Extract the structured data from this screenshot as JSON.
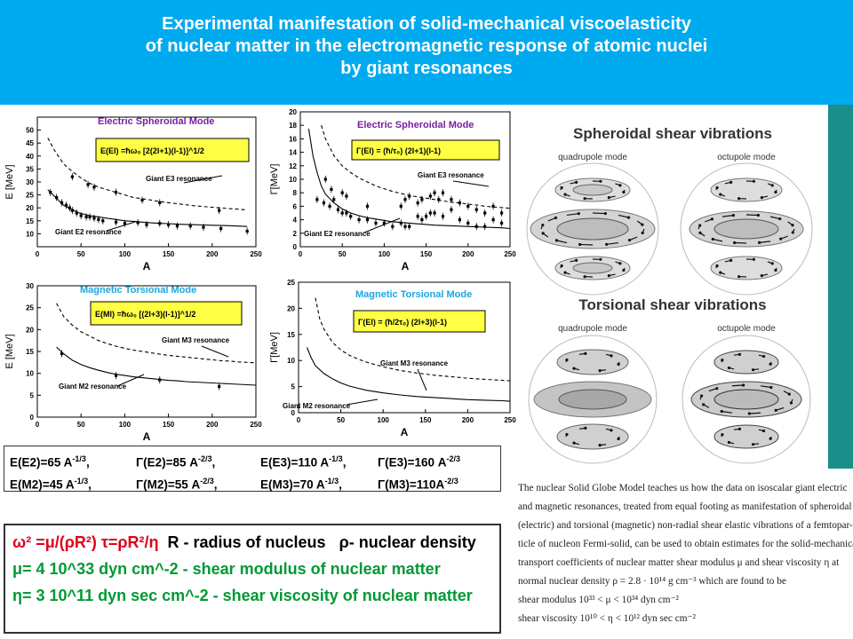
{
  "banner": {
    "line1": "Experimental manifestation of solid-mechanical viscoelasticity",
    "line2": "of nuclear matter in the electromagnetic response of atomic nuclei",
    "line3": "by giant resonances"
  },
  "chart_data": [
    {
      "type": "scatter",
      "title": "Electric Spheroidal Mode",
      "formula": "E(El) =ħω₀ [2(2l+1)(l-1)]^1/2",
      "xlabel": "A",
      "ylabel": "E [MeV]",
      "xlim": [
        0,
        250
      ],
      "ylim": [
        5,
        55
      ],
      "xticks": [
        "0",
        "50",
        "100",
        "150",
        "200",
        "250"
      ],
      "yticks": [
        "10",
        "15",
        "20",
        "25",
        "30",
        "35",
        "40",
        "45",
        "50"
      ],
      "annotations": [
        "Giant E3 resonance",
        "Giant E2 resonance"
      ],
      "series": [
        {
          "x": [
            12,
            18,
            24,
            30,
            36,
            42,
            48,
            54,
            60,
            70,
            80,
            90,
            100,
            110,
            120,
            130,
            140,
            150,
            160,
            170,
            180,
            190,
            200,
            210,
            220,
            240
          ],
          "y": [
            27,
            25,
            23,
            21,
            20,
            19,
            18,
            17.5,
            17,
            16.5,
            16,
            15.5,
            15,
            14.8,
            14.5,
            14.2,
            14,
            13.9,
            13.7,
            13.6,
            13.5,
            13.4,
            13.3,
            13.2,
            13.1,
            12.8
          ]
        },
        {
          "x": [
            12,
            20,
            30,
            40,
            50,
            60,
            70,
            80,
            90,
            100,
            110,
            120,
            130,
            140,
            150,
            160,
            170,
            180,
            190,
            200,
            210,
            220,
            230,
            240
          ],
          "y": [
            47,
            42,
            37,
            34,
            31.5,
            29.5,
            28,
            27,
            26,
            25,
            24,
            23.5,
            23,
            22.4,
            22,
            21.6,
            21.2,
            20.8,
            20.5,
            20.2,
            20,
            19.7,
            19.5,
            19.2
          ]
        },
        {
          "x": [
            15,
            22,
            28,
            33,
            37,
            40,
            45,
            50,
            56,
            60,
            65,
            70,
            75,
            90,
            100,
            115,
            125,
            140,
            150,
            160,
            175,
            190,
            210,
            240
          ],
          "y": [
            26,
            24,
            22,
            21,
            20,
            19,
            18,
            17,
            16.5,
            16.5,
            16,
            15.5,
            15,
            14.5,
            14,
            14.3,
            13.5,
            14,
            13.5,
            13,
            13,
            12.5,
            12,
            11
          ]
        },
        {
          "x": [
            40,
            58,
            65,
            90,
            120,
            140,
            208
          ],
          "y": [
            32,
            29,
            28,
            26,
            23,
            22,
            19
          ]
        }
      ]
    },
    {
      "type": "scatter",
      "title": "Electric Spheroidal Mode",
      "formula": "Γ(El) = (ħ/τ₀) (2l+1)(l-1)",
      "xlabel": "A",
      "ylabel": "Γ[MeV]",
      "xlim": [
        0,
        250
      ],
      "ylim": [
        0,
        20
      ],
      "xticks": [
        "0",
        "50",
        "100",
        "150",
        "200",
        "250"
      ],
      "yticks": [
        "0",
        "2",
        "4",
        "6",
        "8",
        "10",
        "12",
        "14",
        "16",
        "18",
        "20"
      ],
      "annotations": [
        "Giant E3 resonance",
        "Giant E2 resonance"
      ],
      "series": [
        {
          "x": [
            10,
            15,
            20,
            25,
            30,
            40,
            50,
            60,
            70,
            80,
            90,
            100,
            110,
            120,
            130,
            140,
            150,
            160,
            170,
            180,
            190,
            200,
            210,
            220,
            230,
            240,
            250
          ],
          "y": [
            17.5,
            13.5,
            11,
            9,
            7.8,
            6.5,
            5.6,
            5,
            4.6,
            4.3,
            4.1,
            3.9,
            3.7,
            3.6,
            3.5,
            3.4,
            3.3,
            3.2,
            3.15,
            3.1,
            3.05,
            3,
            2.95,
            2.9,
            2.85,
            2.8,
            2.7
          ]
        },
        {
          "x": [
            25,
            30,
            40,
            50,
            60,
            70,
            80,
            90,
            100,
            110,
            120,
            130,
            140,
            150,
            160,
            170,
            180,
            190,
            200,
            210,
            220,
            230,
            240,
            250
          ],
          "y": [
            18,
            16,
            13.5,
            12,
            11,
            10.2,
            9.6,
            9,
            8.6,
            8.2,
            7.9,
            7.6,
            7.4,
            7.2,
            7,
            6.8,
            6.6,
            6.5,
            6.3,
            6.2,
            6,
            5.9,
            5.8,
            5.7
          ]
        },
        {
          "x": [
            20,
            28,
            35,
            40,
            45,
            50,
            55,
            60,
            70,
            80,
            90,
            100,
            110,
            120,
            125,
            130,
            140,
            145,
            150,
            155,
            160,
            170,
            180,
            190,
            200,
            210,
            220,
            230,
            240
          ],
          "y": [
            7,
            6.5,
            6,
            7,
            5.5,
            5,
            5,
            4.5,
            4,
            4,
            3.5,
            3.5,
            3,
            3.5,
            3,
            3,
            4.5,
            4,
            4.5,
            5,
            5,
            4.5,
            5.5,
            4,
            3.5,
            3,
            3,
            4,
            3.5
          ]
        },
        {
          "x": [
            30,
            37,
            50,
            55,
            80,
            120,
            125,
            130,
            140,
            145,
            155,
            160,
            165,
            170,
            180,
            190,
            200,
            210,
            220,
            230,
            240
          ],
          "y": [
            10,
            8.5,
            8,
            7.5,
            6,
            6,
            7,
            7.5,
            6.5,
            7,
            7.5,
            8,
            7,
            8,
            7,
            6.5,
            6,
            5.5,
            5,
            6,
            5
          ]
        }
      ]
    },
    {
      "type": "scatter",
      "title": "Magnetic Torsional Mode",
      "formula": "E(Ml) =ħω₀ [(2l+3)(l-1)]^1/2",
      "xlabel": "A",
      "ylabel": "E [MeV]",
      "xlim": [
        0,
        250
      ],
      "ylim": [
        0,
        30
      ],
      "xticks": [
        "0",
        "50",
        "100",
        "150",
        "200",
        "250"
      ],
      "yticks": [
        "0",
        "5",
        "10",
        "15",
        "20",
        "25",
        "30"
      ],
      "annotations": [
        "Giant M3 resonance",
        "Giant M2 resonance"
      ],
      "series": [
        {
          "x": [
            22,
            30,
            40,
            50,
            60,
            70,
            80,
            90,
            100,
            110,
            120,
            130,
            140,
            150,
            160,
            170,
            180,
            190,
            200,
            210,
            220,
            230,
            240,
            250
          ],
          "y": [
            16,
            14.5,
            13,
            12,
            11.3,
            10.7,
            10.2,
            9.8,
            9.5,
            9.2,
            9,
            8.8,
            8.6,
            8.4,
            8.3,
            8.1,
            8,
            7.9,
            7.8,
            7.7,
            7.6,
            7.5,
            7.4,
            7.3
          ]
        },
        {
          "x": [
            22,
            30,
            40,
            50,
            60,
            70,
            80,
            90,
            100,
            110,
            120,
            130,
            140,
            150,
            160,
            170,
            180,
            190,
            200,
            210,
            220,
            230,
            240,
            250
          ],
          "y": [
            26,
            23,
            21,
            19.5,
            18.5,
            17.5,
            16.8,
            16.2,
            15.7,
            15.3,
            15,
            14.7,
            14.4,
            14.1,
            13.9,
            13.7,
            13.5,
            13.3,
            13.1,
            12.9,
            12.8,
            12.6,
            12.5,
            12.4
          ]
        },
        {
          "x": [
            28,
            90,
            140,
            208
          ],
          "y": [
            14.5,
            9.5,
            8.5,
            7
          ]
        }
      ]
    },
    {
      "type": "line",
      "title": "Magnetic Torsional Mode",
      "formula": "Γ(El) = (ħ/2τ₀) (2l+3)(l-1)",
      "xlabel": "A",
      "ylabel": "Γ[MeV]",
      "xlim": [
        0,
        250
      ],
      "ylim": [
        0,
        25
      ],
      "xticks": [
        "0",
        "50",
        "100",
        "150",
        "200",
        "250"
      ],
      "yticks": [
        "0",
        "5",
        "10",
        "15",
        "20",
        "25"
      ],
      "annotations": [
        "Giant M3 resonance",
        "Giant M2 resonance"
      ],
      "series": [
        {
          "x": [
            10,
            15,
            20,
            30,
            40,
            50,
            60,
            70,
            80,
            100,
            120,
            140,
            160,
            180,
            200,
            220,
            240,
            250
          ],
          "y": [
            12.5,
            10.5,
            9,
            7.5,
            6.5,
            5.7,
            5.1,
            4.7,
            4.3,
            3.8,
            3.4,
            3.1,
            2.9,
            2.7,
            2.5,
            2.4,
            2.3,
            2.2
          ]
        },
        {
          "x": [
            20,
            25,
            30,
            40,
            50,
            60,
            70,
            80,
            100,
            120,
            140,
            160,
            180,
            200,
            220,
            240,
            250
          ],
          "y": [
            22,
            18,
            16,
            13.5,
            12,
            11,
            10.3,
            9.7,
            8.8,
            8.1,
            7.6,
            7.2,
            6.9,
            6.6,
            6.4,
            6.2,
            6.1
          ]
        }
      ]
    }
  ],
  "formulas": {
    "row1": [
      "E(E2)=65 A^-1/3,",
      "Γ(E2)=85 A^-2/3,",
      "E(E3)=110 A^-1/3,",
      "Γ(E3)=160 A^-2/3"
    ],
    "row2": [
      "E(M2)=45 A^-1/3,",
      "Γ(M2)=55 A^-2/3,",
      "E(M3)=70 A^-1/3,",
      "Γ(M3)=110A^-2/3"
    ]
  },
  "keybox": {
    "eq1": "ω² =μ/(ρR²)  τ=ρR²/η",
    "r_label": "R - radius of nucleus",
    "rho_label": "ρ- nuclear density",
    "mu_line": "μ= 4 10^33 dyn cm^-2 - shear modulus of nuclear matter",
    "eta_line": "η= 3 10^11 dyn sec cm^-2 - shear viscosity of nuclear matter"
  },
  "globes": {
    "spheroidal_title": "Spheroidal shear vibrations",
    "torsional_title": "Torsional shear vibrations",
    "quadrupole": "quadrupole mode",
    "octupole": "octupole mode"
  },
  "caption": {
    "l1": "The nuclear Solid Globe Model teaches us how the data on isoscalar giant electric",
    "l2": "and magnetic resonances, treated from equal footing as manifestation of spheroidal",
    "l3": "(electric) and torsional (magnetic) non-radial shear elastic vibrations of a femtopar-",
    "l4": "ticle of nucleon Fermi-solid, can be used to obtain estimates for the solid-mechanical",
    "l5": "transport coefficients of nuclear matter  shear modulus μ and shear viscosity η at",
    "l6": "normal nuclear density ρ = 2.8 · 10¹⁴ g cm⁻³ which are found to be",
    "l7": "shear modulus 10³³ < μ < 10³⁴ dyn cm⁻²",
    "l8": "shear viscosity 10¹⁰ < η < 10¹² dyn sec cm⁻²"
  }
}
